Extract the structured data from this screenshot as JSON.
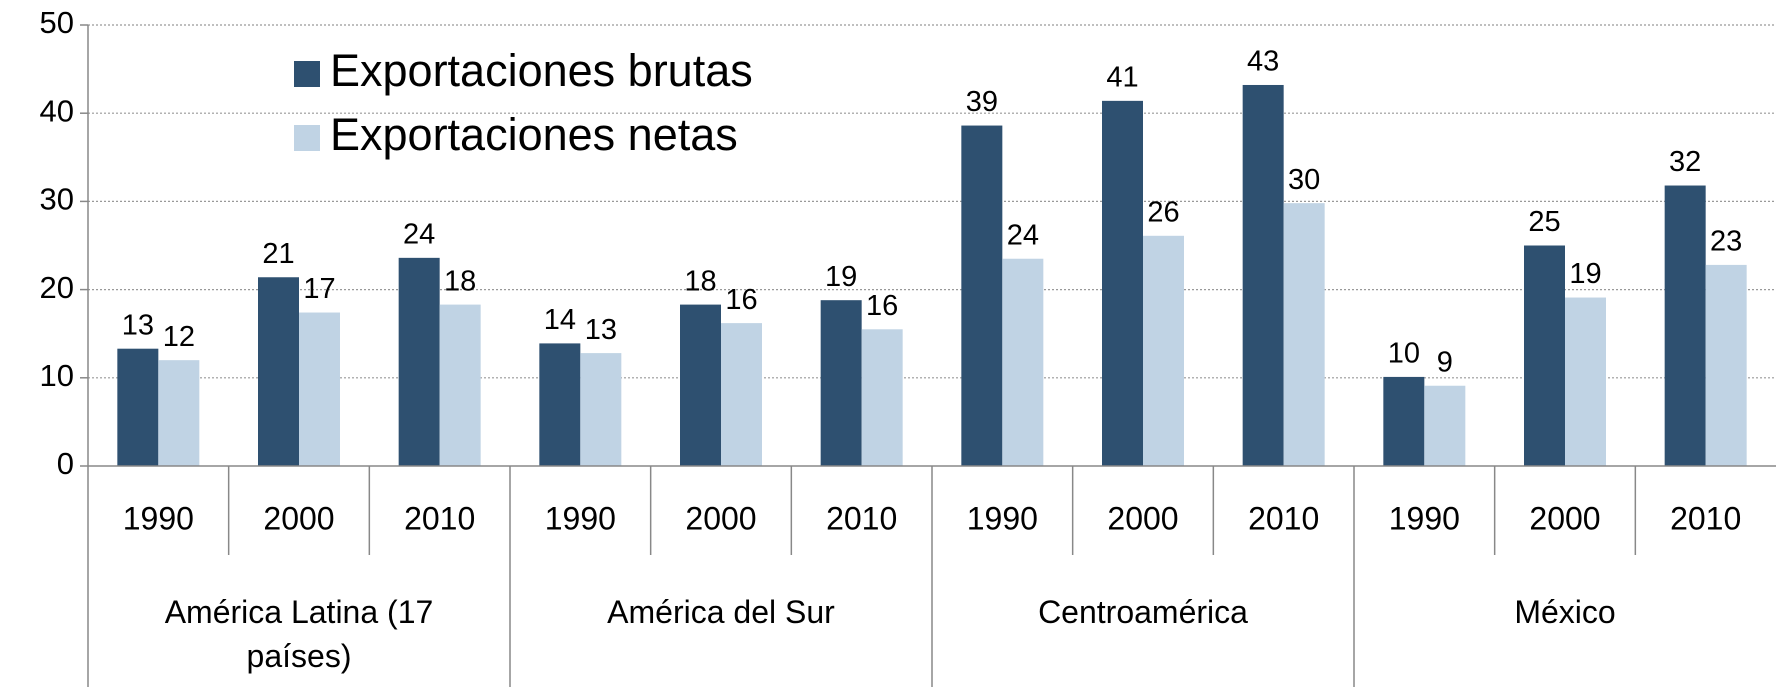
{
  "chart_data": {
    "type": "bar",
    "categories": [
      "1990",
      "2000",
      "2010",
      "1990",
      "2000",
      "2010",
      "1990",
      "2000",
      "2010",
      "1990",
      "2000",
      "2010"
    ],
    "category_groups": [
      "América Latina (17 países)",
      "América del Sur",
      "Centroamérica",
      "México"
    ],
    "series": [
      {
        "name": "Exportaciones brutas",
        "color": "#2e5070",
        "values": [
          13.3,
          21.4,
          23.6,
          13.9,
          18.3,
          18.8,
          38.6,
          41.4,
          43.2,
          10.1,
          25.0,
          31.8
        ],
        "value_labels": [
          "13",
          "21",
          "24",
          "14",
          "18",
          "19",
          "39",
          "41",
          "43",
          "10",
          "25",
          "32"
        ]
      },
      {
        "name": "Exportaciones netas",
        "color": "#c0d3e4",
        "values": [
          12.0,
          17.4,
          18.3,
          12.8,
          16.2,
          15.5,
          23.5,
          26.1,
          29.8,
          9.1,
          19.1,
          22.8
        ],
        "value_labels": [
          "12",
          "17",
          "18",
          "13",
          "16",
          "16",
          "24",
          "26",
          "30",
          "9",
          "19",
          "23"
        ]
      }
    ],
    "ylim": [
      0,
      50
    ],
    "yticks": [
      0,
      10,
      20,
      30,
      40,
      50
    ],
    "grid": true,
    "legend": "top-left"
  }
}
